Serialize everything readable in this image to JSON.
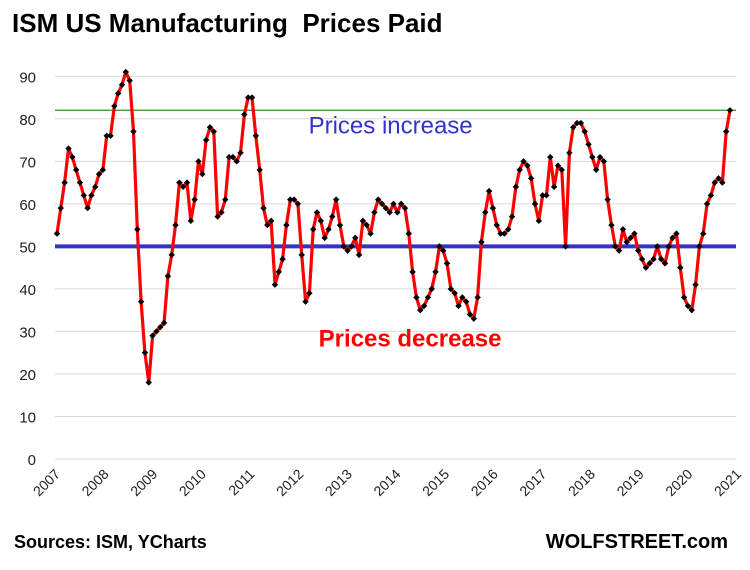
{
  "title": "ISM US Manufacturing  Prices Paid",
  "source": "Sources: ISM, YCharts",
  "brand": "WOLFSTREET.com",
  "chart_data": {
    "type": "line",
    "title": "ISM US Manufacturing  Prices Paid",
    "xlabel": "",
    "ylabel": "",
    "ylim": [
      0,
      95
    ],
    "xlim": [
      2007,
      2021
    ],
    "grid": true,
    "y_ticks": [
      0,
      10,
      20,
      30,
      40,
      50,
      60,
      70,
      80,
      90
    ],
    "x_ticks": [
      "2007",
      "2008",
      "2009",
      "2010",
      "2011",
      "2012",
      "2013",
      "2014",
      "2015",
      "2016",
      "2017",
      "2018",
      "2019",
      "2020",
      "2021"
    ],
    "colors": {
      "series": "#ff0000",
      "markers": "#000000",
      "baseline": "#3333cc",
      "current_level": "#2e8b2e",
      "increase_label": "#3333cc",
      "decrease_label": "#ff0000"
    },
    "reference_lines": [
      {
        "value": 50,
        "color": "#3333cc"
      },
      {
        "value": 82,
        "color": "#2e8b2e"
      }
    ],
    "annotations": [
      {
        "text": "Prices increase",
        "x": 2013.9,
        "y": 76.5,
        "color": "#3333cc"
      },
      {
        "text": "Prices decrease",
        "x": 2014.3,
        "y": 26.5,
        "color": "#ff0000"
      }
    ],
    "series": [
      {
        "values": [
          53,
          59,
          65,
          73,
          71,
          68,
          65,
          62,
          59,
          62,
          64,
          67,
          68,
          76,
          76,
          83,
          86,
          88,
          91,
          89,
          77,
          54,
          37,
          25,
          18,
          29,
          30,
          31,
          32,
          43,
          48,
          55,
          65,
          64,
          65,
          56,
          61,
          70,
          67,
          75,
          78,
          77,
          57,
          58,
          61,
          71,
          71,
          70,
          72,
          81,
          85,
          85,
          76,
          68,
          59,
          55,
          56,
          41,
          44,
          47,
          55,
          61,
          61,
          60,
          48,
          37,
          39,
          54,
          58,
          56,
          52,
          54,
          57,
          61,
          55,
          50,
          49,
          50,
          52,
          48,
          56,
          55,
          53,
          58,
          61,
          60,
          59,
          58,
          60,
          58,
          60,
          59,
          53,
          44,
          38,
          35,
          36,
          38,
          40,
          44,
          50,
          49,
          46,
          40,
          39,
          36,
          38,
          37,
          34,
          33,
          38,
          51,
          58,
          63,
          59,
          55,
          53,
          53,
          54,
          57,
          64,
          68,
          70,
          69,
          66,
          60,
          56,
          62,
          62,
          71,
          64,
          69,
          68,
          50,
          72,
          78,
          79,
          79,
          77,
          74,
          71,
          68,
          71,
          70,
          61,
          55,
          50,
          49,
          54,
          51,
          52,
          53,
          49,
          47,
          45,
          46,
          47,
          50,
          47,
          46,
          50,
          52,
          53,
          45,
          38,
          36,
          35,
          41,
          50,
          53,
          60,
          62,
          65,
          66,
          65,
          77,
          82
        ]
      }
    ]
  }
}
